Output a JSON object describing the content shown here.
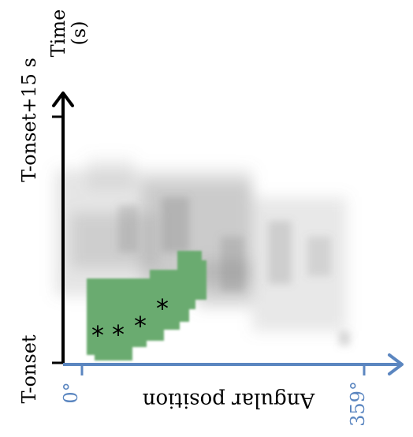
{
  "time_axis": {
    "title_line1": "Time",
    "title_line2": "(s)",
    "tick_top": "T-onset+15 s",
    "tick_bottom": "T-onset",
    "color": "#000000"
  },
  "angle_axis": {
    "title": "Angular position",
    "tick_start": "0°",
    "tick_end": "359°",
    "color": "#5b86c0"
  },
  "region": {
    "color": "#6bab6f",
    "marker": "*",
    "marker_count": 4
  },
  "colors": {
    "background": "#ffffff",
    "heatmap": "#8a8a8a"
  }
}
